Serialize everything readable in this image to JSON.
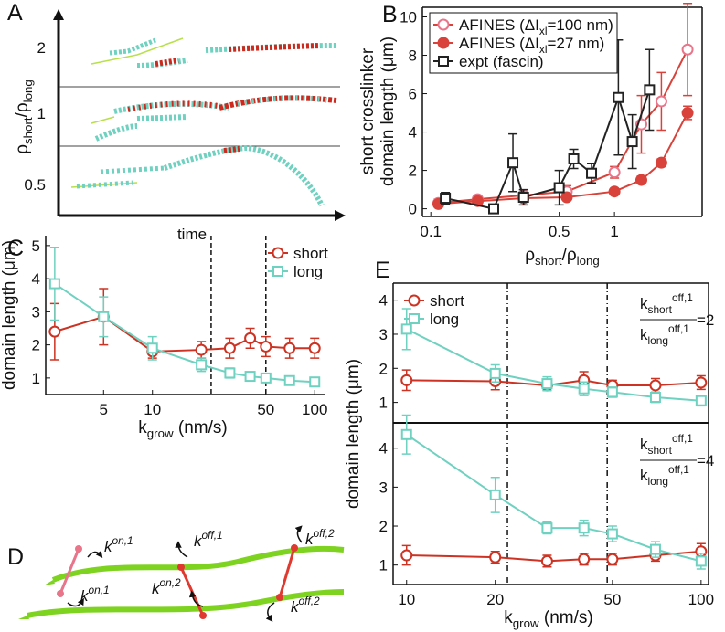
{
  "panel_labels": [
    "A",
    "B",
    "C",
    "D",
    "E"
  ],
  "panel_a": {
    "ylabel": [
      {
        "base": "ρ",
        "sub": "short"
      },
      {
        "base": "/ρ",
        "sub": "long"
      }
    ],
    "rows": [
      "2",
      "1",
      "0.5"
    ],
    "xlabel": "time"
  },
  "panel_d": {
    "labels": [
      {
        "base": "k",
        "sup": "on,1"
      },
      {
        "base": "k",
        "sup": "on,1"
      },
      {
        "base": "k",
        "sup": "off,1"
      },
      {
        "base": "k",
        "sup": "on,2"
      },
      {
        "base": "k",
        "sup": "off,2"
      },
      {
        "base": "k",
        "sup": "off,2"
      }
    ]
  },
  "chart_data": [
    {
      "type": "line",
      "xscale": "log",
      "xlim": [
        0.09,
        3.0
      ],
      "ylim": [
        -0.4,
        10.5
      ],
      "xticks": [
        0.1,
        0.5,
        1
      ],
      "yticks": [
        0,
        2,
        4,
        6,
        8,
        10
      ],
      "legend": "upper left",
      "xlabel": [
        {
          "base": "ρ",
          "sub": "short"
        },
        {
          "base": "/ρ",
          "sub": "long"
        }
      ],
      "ylabel": [
        "short crosslinker",
        "domain length (μm)"
      ],
      "series": [
        {
          "name": [
            {
              "base": "AFINES   (ΔI",
              "sub": "xl"
            },
            {
              "base": "=100 nm)"
            }
          ],
          "color": "#d8423a",
          "marker": "open-circle",
          "marker_color": "#e8758a",
          "x": [
            0.11,
            0.18,
            0.32,
            0.55,
            1.0,
            1.4,
            1.8,
            2.5
          ],
          "values": [
            0.3,
            0.5,
            0.7,
            0.9,
            1.9,
            4.4,
            5.6,
            8.3
          ],
          "errors": [
            0.2,
            0.2,
            0.2,
            0.3,
            0.3,
            1.5,
            1.5,
            2.4
          ]
        },
        {
          "name": [
            {
              "base": "AFINES   (ΔI",
              "sub": "xl"
            },
            {
              "base": "=27 nm)"
            }
          ],
          "color": "#d8423a",
          "marker": "filled-circle",
          "marker_color": "#d8423a",
          "x": [
            0.11,
            0.18,
            0.32,
            0.55,
            1.0,
            1.4,
            1.8,
            2.5
          ],
          "values": [
            0.25,
            0.4,
            0.55,
            0.6,
            0.9,
            1.5,
            2.4,
            5.0
          ],
          "errors": [
            0.15,
            0.15,
            0.15,
            0.15,
            0.1,
            0.2,
            0.2,
            0.35
          ]
        },
        {
          "name": "expt (fascin)",
          "color": "#222222",
          "marker": "open-square",
          "marker_color": "#222222",
          "x": [
            0.12,
            0.22,
            0.28,
            0.32,
            0.5,
            0.6,
            0.75,
            1.05,
            1.25,
            1.55
          ],
          "values": [
            0.55,
            0.0,
            2.4,
            0.6,
            1.1,
            2.6,
            1.85,
            5.8,
            3.5,
            6.2
          ],
          "errors": [
            0.3,
            0.1,
            1.5,
            0.4,
            0.9,
            0.5,
            0.5,
            3.0,
            1.4,
            2.1
          ]
        }
      ]
    },
    {
      "type": "line",
      "xscale": "log",
      "xlim": [
        2.2,
        115
      ],
      "ylim": [
        0.5,
        5.3
      ],
      "xticks": [
        5,
        10,
        50,
        100
      ],
      "yticks": [
        1,
        2,
        3,
        4,
        5
      ],
      "legend": "upper right",
      "reference_lines": [
        23,
        50
      ],
      "xlabel": [
        {
          "base": "k",
          "sub": "grow"
        },
        {
          "base": " (nm/s)"
        }
      ],
      "ylabel": "domain length (μm)",
      "x": [
        2.5,
        5,
        10,
        20,
        30,
        40,
        50,
        70,
        100
      ],
      "series": [
        {
          "name": "short",
          "color": "#cc3322",
          "marker": "open-circle",
          "marker_color": "#cc3322",
          "values": [
            2.4,
            2.85,
            1.8,
            1.85,
            1.9,
            2.2,
            1.95,
            1.9,
            1.9
          ],
          "errors": [
            0.85,
            0.85,
            0.2,
            0.25,
            0.3,
            0.3,
            0.3,
            0.3,
            0.3
          ]
        },
        {
          "name": "long",
          "color": "#6fd1c0",
          "marker": "open-square",
          "marker_color": "#6fd1c0",
          "values": [
            3.85,
            2.85,
            1.9,
            1.4,
            1.15,
            1.05,
            1.0,
            0.92,
            0.88
          ],
          "errors": [
            1.1,
            0.6,
            0.35,
            0.2,
            0.15,
            0.12,
            0.12,
            0.1,
            0.1
          ]
        }
      ]
    },
    {
      "type": "line",
      "xscale": "log",
      "xlim": [
        9,
        106
      ],
      "ylim": [
        0.4,
        4.5
      ],
      "yticks": [
        1,
        2,
        3,
        4
      ],
      "legend": "upper left",
      "reference_lines": [
        22,
        48
      ],
      "ylabel": "domain length (μm)",
      "annotation": {
        "numerator": [
          {
            "base": "k",
            "sub": "short",
            "sup": "off,1"
          }
        ],
        "denominator": [
          {
            "base": "k",
            "sub": "long",
            "sup": "off,1"
          }
        ],
        "ratio": "=2"
      },
      "x": [
        10,
        20,
        30,
        40,
        50,
        70,
        100
      ],
      "series": [
        {
          "name": "short",
          "color": "#cc3322",
          "marker": "open-circle",
          "marker_color": "#cc3322",
          "values": [
            1.65,
            1.62,
            1.5,
            1.65,
            1.5,
            1.5,
            1.58
          ],
          "errors": [
            0.3,
            0.25,
            0.15,
            0.25,
            0.15,
            0.2,
            0.2
          ]
        },
        {
          "name": "long",
          "color": "#6fd1c0",
          "marker": "open-square",
          "marker_color": "#6fd1c0",
          "values": [
            3.15,
            1.85,
            1.55,
            1.4,
            1.3,
            1.15,
            1.05
          ],
          "errors": [
            0.6,
            0.25,
            0.2,
            0.2,
            0.15,
            0.15,
            0.15
          ]
        }
      ]
    },
    {
      "type": "line",
      "xscale": "log",
      "xlim": [
        9,
        106
      ],
      "ylim": [
        0.5,
        4.65
      ],
      "xticks": [
        10,
        20,
        50,
        100
      ],
      "yticks": [
        1,
        2,
        3,
        4
      ],
      "reference_lines": [
        22,
        48
      ],
      "xlabel": [
        {
          "base": "k",
          "sub": "grow"
        },
        {
          "base": " (nm/s)"
        }
      ],
      "annotation": {
        "numerator": [
          {
            "base": "k",
            "sub": "short",
            "sup": "off,1"
          }
        ],
        "denominator": [
          {
            "base": "k",
            "sub": "long",
            "sup": "off,1"
          }
        ],
        "ratio": "=4"
      },
      "x": [
        10,
        20,
        30,
        40,
        50,
        70,
        100
      ],
      "series": [
        {
          "color": "#cc3322",
          "marker": "open-circle",
          "marker_color": "#cc3322",
          "values": [
            1.25,
            1.2,
            1.1,
            1.15,
            1.15,
            1.25,
            1.35
          ],
          "errors": [
            0.25,
            0.15,
            0.15,
            0.15,
            0.15,
            0.15,
            0.2
          ]
        },
        {
          "color": "#6fd1c0",
          "marker": "open-square",
          "marker_color": "#6fd1c0",
          "values": [
            4.35,
            2.8,
            1.95,
            1.95,
            1.8,
            1.4,
            1.1
          ],
          "errors": [
            0.5,
            0.45,
            0.15,
            0.2,
            0.2,
            0.2,
            0.2
          ]
        }
      ]
    }
  ]
}
